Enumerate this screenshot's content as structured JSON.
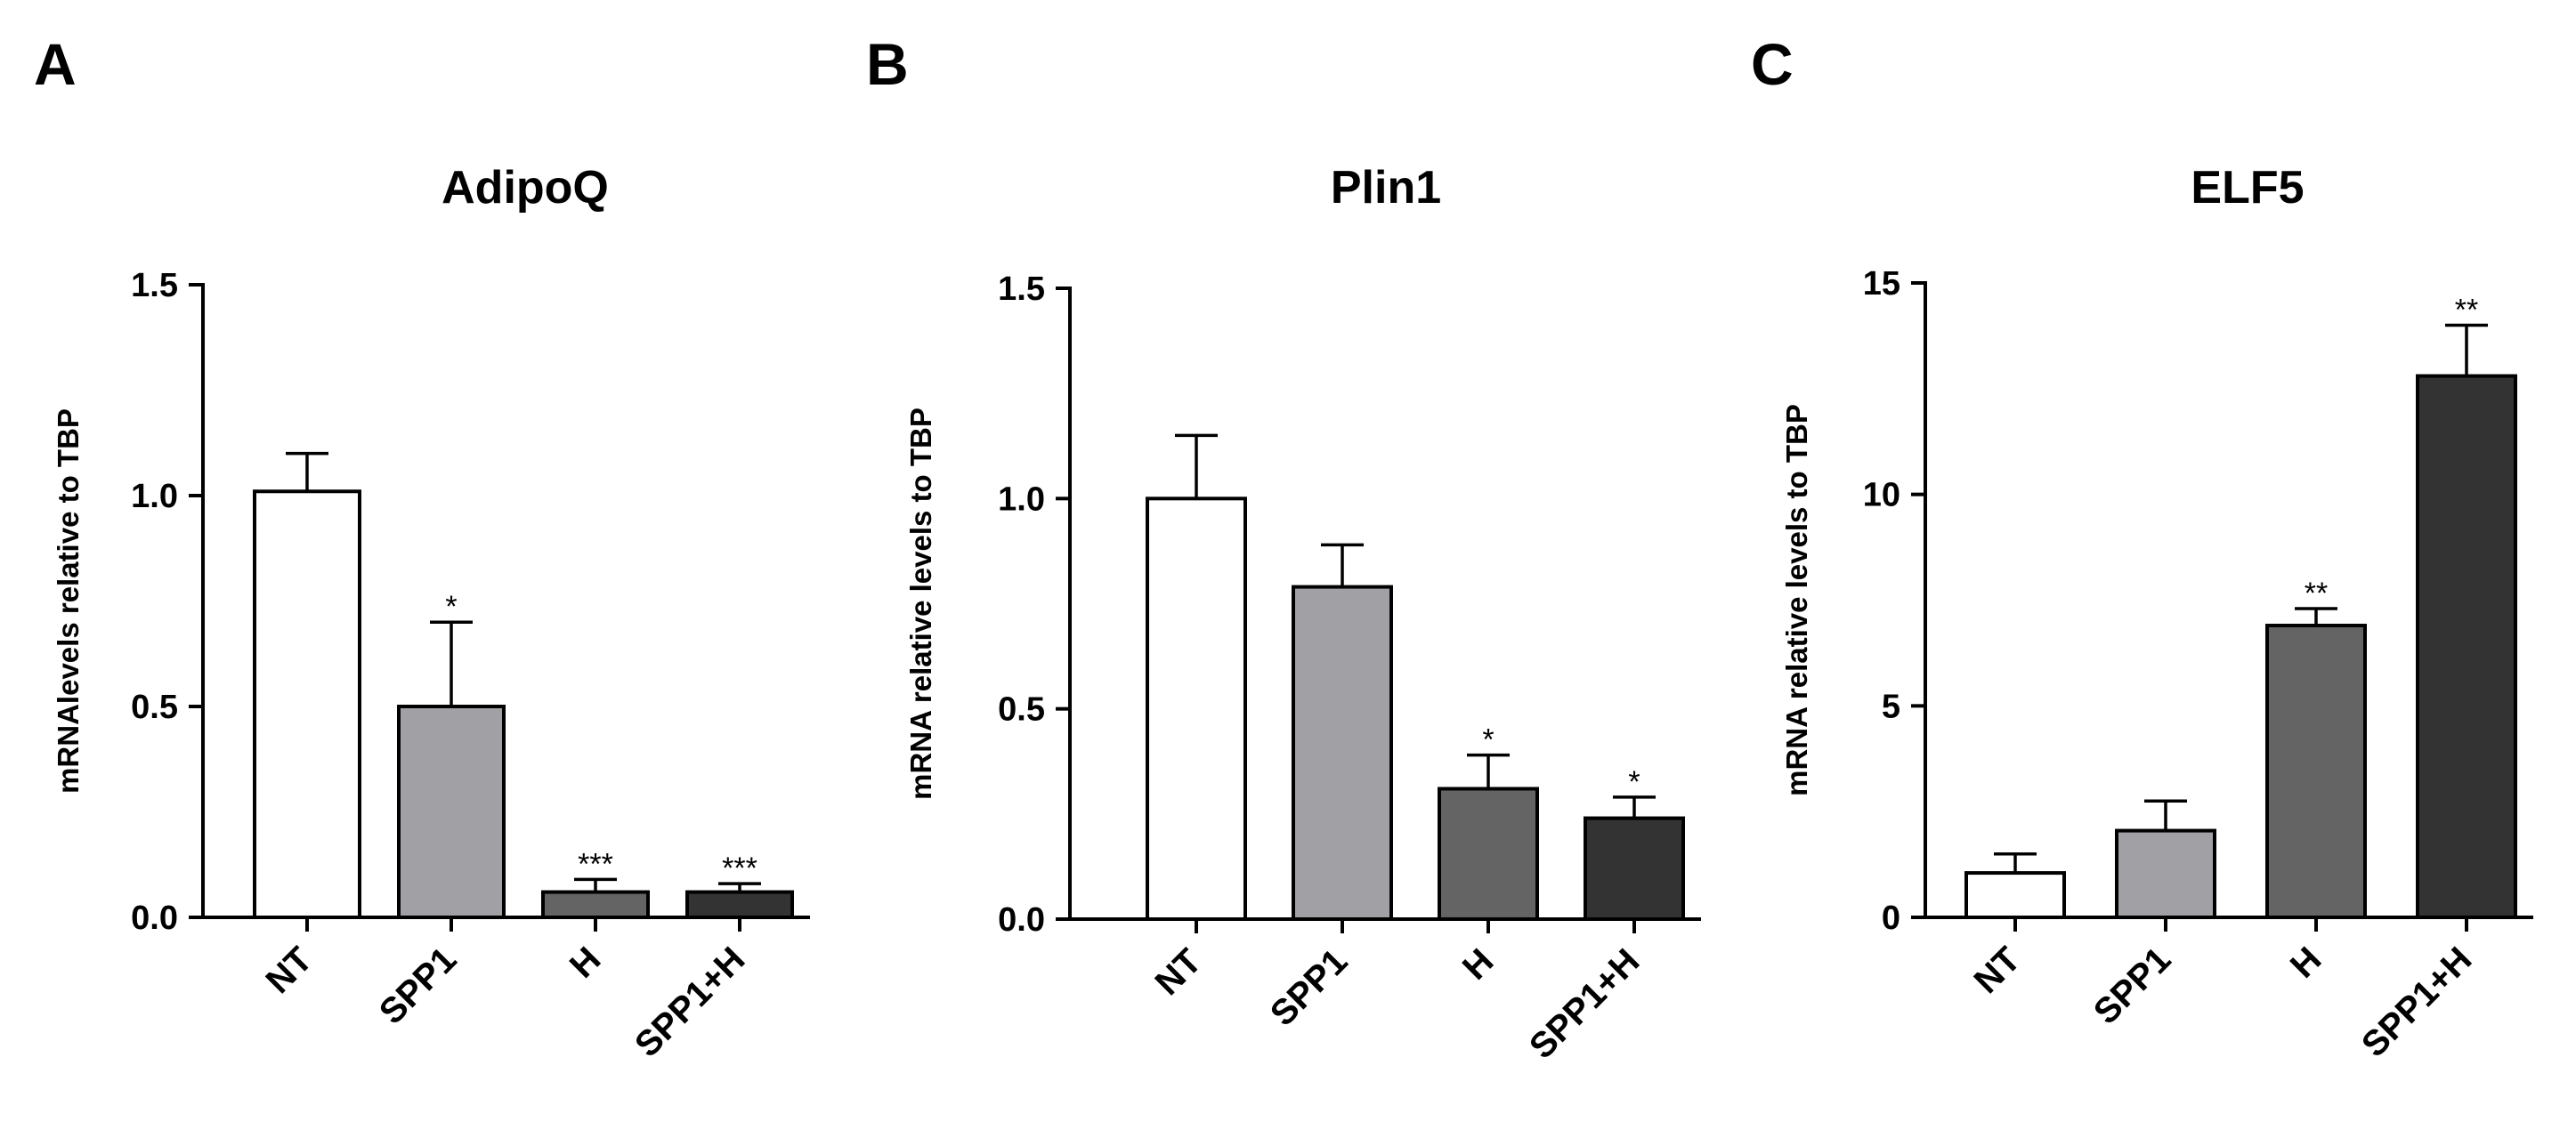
{
  "chart_data": [
    {
      "panel": "A",
      "type": "bar",
      "title": "AdipoQ",
      "ylabel": "mRNAlevels relative to TBP",
      "categories": [
        "NT",
        "SPP1",
        "H",
        "SPP1+H"
      ],
      "values": [
        1.01,
        0.5,
        0.06,
        0.06
      ],
      "errors": [
        0.09,
        0.2,
        0.03,
        0.02
      ],
      "significance": [
        "",
        "*",
        "***",
        "***"
      ],
      "ylim": [
        0,
        1.5
      ],
      "yticks": [
        0.0,
        0.5,
        1.0,
        1.5
      ],
      "yticklabels": [
        "0.0",
        "0.5",
        "1.0",
        "1.5"
      ],
      "bar_colors": [
        "#ffffff",
        "#a1a0a5",
        "#646464",
        "#333333"
      ]
    },
    {
      "panel": "B",
      "type": "bar",
      "title": "Plin1",
      "ylabel": "mRNA relative levels to TBP",
      "categories": [
        "NT",
        "SPP1",
        "H",
        "SPP1+H"
      ],
      "values": [
        1.0,
        0.79,
        0.31,
        0.24
      ],
      "errors": [
        0.15,
        0.1,
        0.08,
        0.05
      ],
      "significance": [
        "",
        "",
        "*",
        "*"
      ],
      "ylim": [
        0,
        1.5
      ],
      "yticks": [
        0.0,
        0.5,
        1.0,
        1.5
      ],
      "yticklabels": [
        "0.0",
        "0.5",
        "1.0",
        "1.5"
      ],
      "bar_colors": [
        "#ffffff",
        "#a1a0a5",
        "#646464",
        "#333333"
      ]
    },
    {
      "panel": "C",
      "type": "bar",
      "title": "ELF5",
      "ylabel": "mRNA relative levels to TBP",
      "categories": [
        "NT",
        "SPP1",
        "H",
        "SPP1+H"
      ],
      "values": [
        1.05,
        2.05,
        6.9,
        12.8
      ],
      "errors": [
        0.45,
        0.7,
        0.4,
        1.2
      ],
      "significance": [
        "",
        "",
        "**",
        "**"
      ],
      "ylim": [
        0,
        15
      ],
      "yticks": [
        0,
        5,
        10,
        15
      ],
      "yticklabels": [
        "0",
        "5",
        "10",
        "15"
      ],
      "bar_colors": [
        "#ffffff",
        "#a1a0a5",
        "#646464",
        "#333333"
      ]
    }
  ]
}
